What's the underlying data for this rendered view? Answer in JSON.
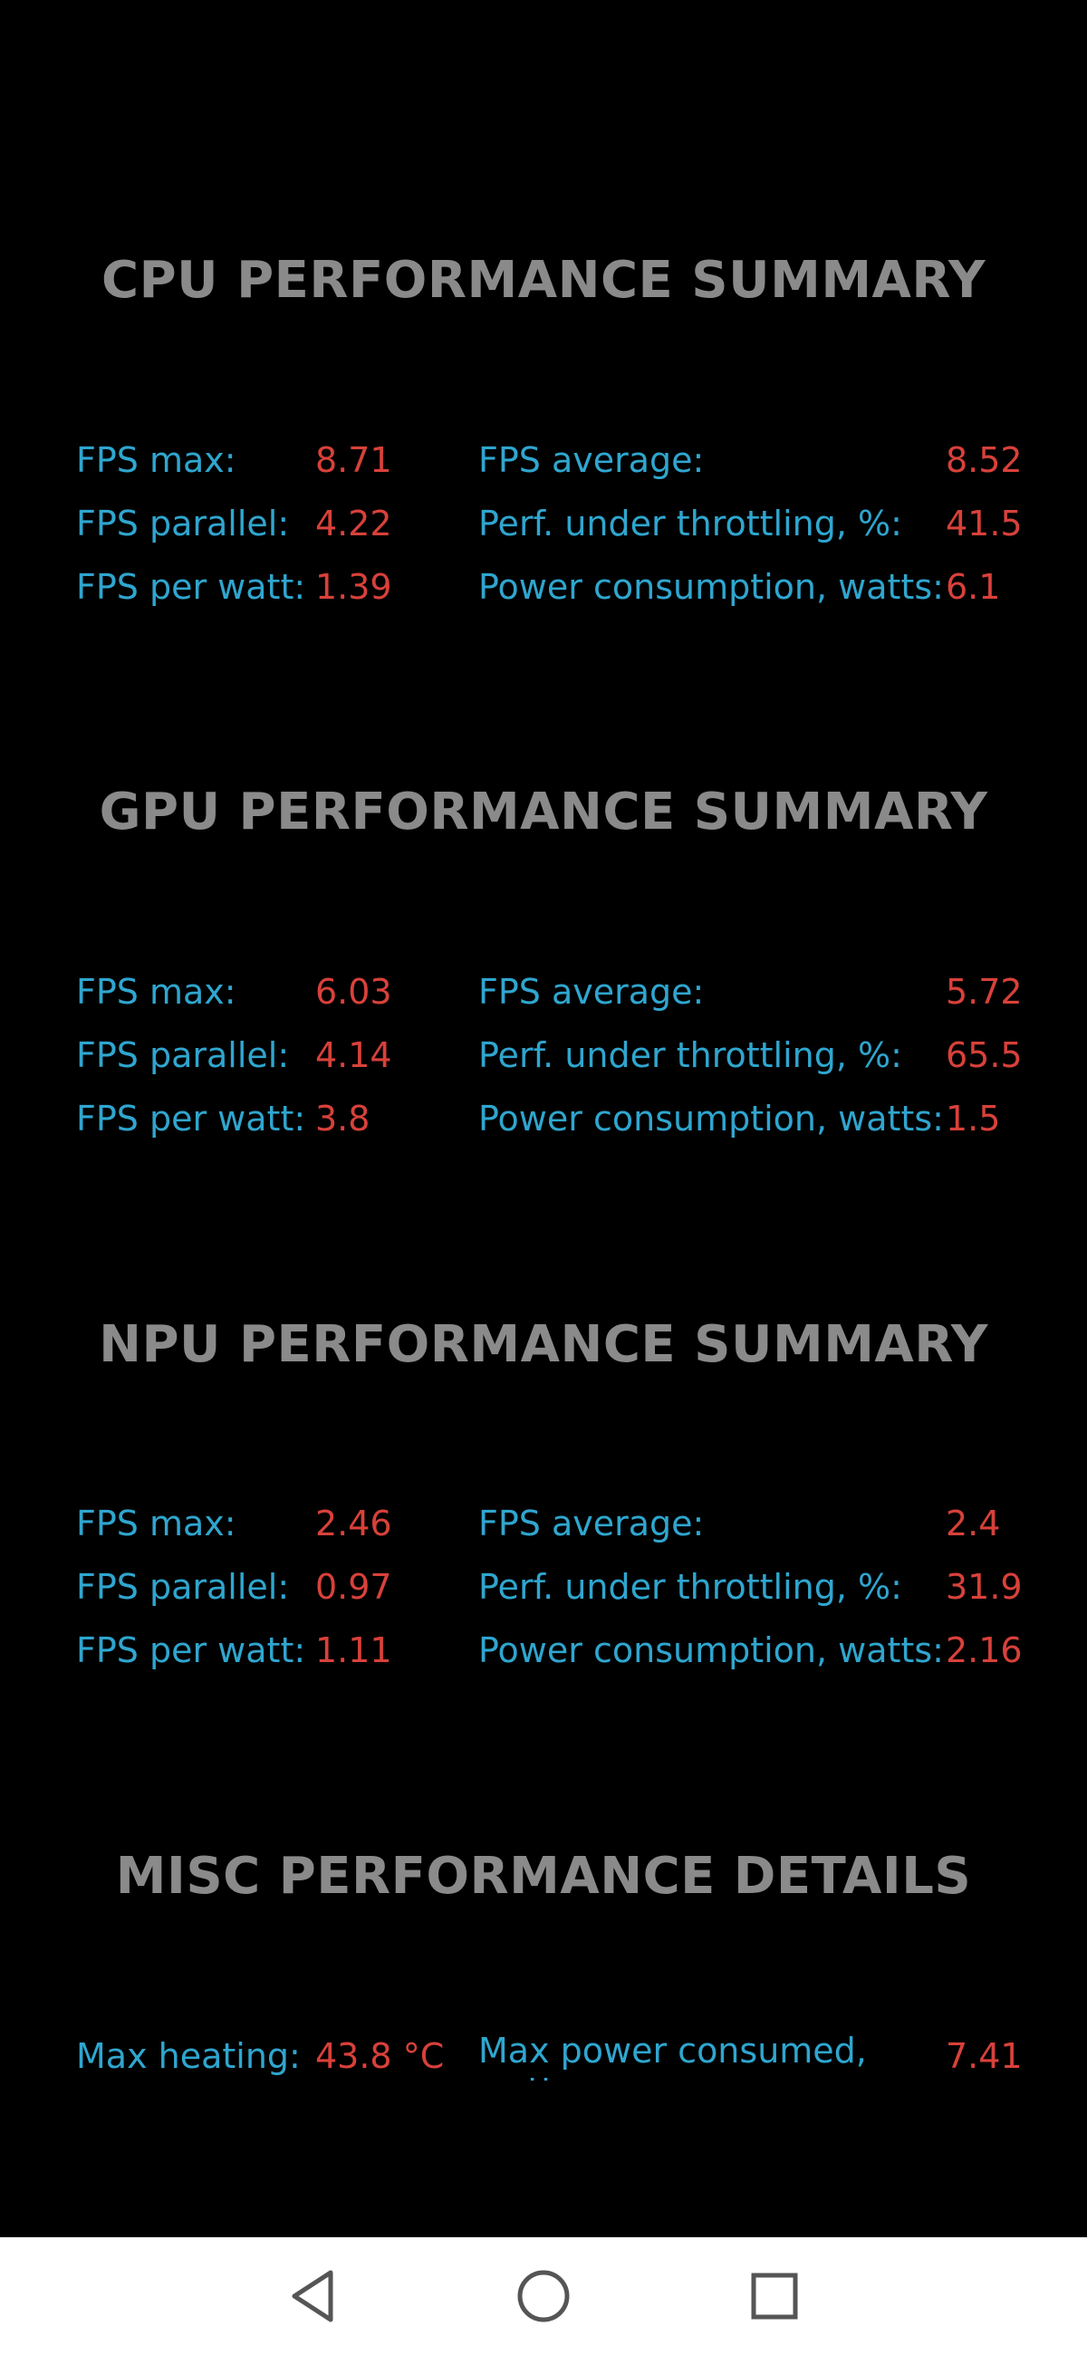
{
  "sections": [
    {
      "title": "CPU PERFORMANCE SUMMARY",
      "metrics": {
        "fps_max": {
          "label": "FPS max:",
          "value": "8.71"
        },
        "fps_parallel": {
          "label": "FPS parallel:",
          "value": "4.22"
        },
        "fps_per_watt": {
          "label": "FPS per watt:",
          "value": "1.39"
        },
        "fps_average": {
          "label": "FPS average:",
          "value": "8.52"
        },
        "perf_throttling": {
          "label": "Perf. under throttling, %:",
          "value": "41.5"
        },
        "power_consumption": {
          "label": "Power consumption, watts:",
          "value": "6.1"
        }
      }
    },
    {
      "title": "GPU PERFORMANCE SUMMARY",
      "metrics": {
        "fps_max": {
          "label": "FPS max:",
          "value": "6.03"
        },
        "fps_parallel": {
          "label": "FPS parallel:",
          "value": "4.14"
        },
        "fps_per_watt": {
          "label": "FPS per watt:",
          "value": "3.8"
        },
        "fps_average": {
          "label": "FPS average:",
          "value": "5.72"
        },
        "perf_throttling": {
          "label": "Perf. under throttling, %:",
          "value": "65.5"
        },
        "power_consumption": {
          "label": "Power consumption, watts:",
          "value": "1.5"
        }
      }
    },
    {
      "title": "NPU PERFORMANCE SUMMARY",
      "metrics": {
        "fps_max": {
          "label": "FPS max:",
          "value": "2.46"
        },
        "fps_parallel": {
          "label": "FPS parallel:",
          "value": "0.97"
        },
        "fps_per_watt": {
          "label": "FPS per watt:",
          "value": "1.11"
        },
        "fps_average": {
          "label": "FPS average:",
          "value": "2.4"
        },
        "perf_throttling": {
          "label": "Perf. under throttling, %:",
          "value": "31.9"
        },
        "power_consumption": {
          "label": "Power consumption, watts:",
          "value": "2.16"
        }
      }
    }
  ],
  "misc": {
    "title": "MISC PERFORMANCE DETAILS",
    "max_heating": {
      "label": "Max heating:",
      "value": "43.8 °C"
    },
    "max_power": {
      "label": "Max power consumed, watts:",
      "value": "7.41"
    }
  },
  "colors": {
    "background": "#000000",
    "title": "#8a8a8a",
    "label": "#2fa6cf",
    "value": "#d8413a",
    "nav_bar": "#ffffff"
  },
  "nav": {
    "back_icon": "back-triangle-icon",
    "home_icon": "home-circle-icon",
    "recents_icon": "recents-square-icon"
  }
}
